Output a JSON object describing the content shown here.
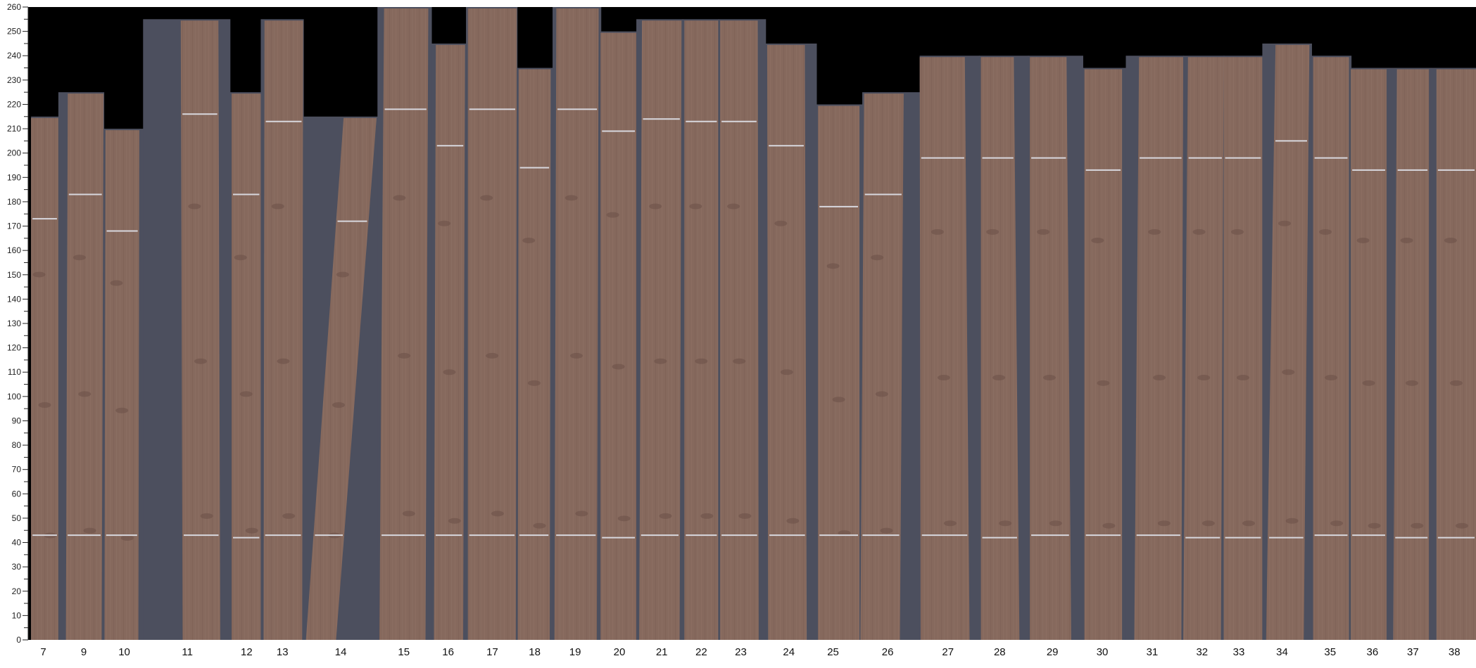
{
  "colors": {
    "background_empty": "#000000",
    "slate_background": "#4c4f5e",
    "wood": "#86695d",
    "marker_line": "#d8d8de",
    "axis": "#222222"
  },
  "chart_data": {
    "type": "bar",
    "title": "",
    "xlabel": "",
    "ylabel": "",
    "ylim": [
      0,
      260
    ],
    "y_major_step": 10,
    "y_minor_step": 5,
    "grid": false,
    "categories": [
      "7",
      "9",
      "10",
      "11",
      "12",
      "13",
      "14",
      "15",
      "16",
      "17",
      "18",
      "19",
      "20",
      "21",
      "22",
      "23",
      "24",
      "25",
      "26",
      "27",
      "28",
      "29",
      "30",
      "31",
      "32",
      "33",
      "34",
      "35",
      "36",
      "37",
      "38"
    ],
    "values": [
      215,
      225,
      210,
      255,
      225,
      255,
      215,
      260,
      245,
      260,
      235,
      260,
      250,
      255,
      255,
      255,
      245,
      220,
      225,
      240,
      240,
      240,
      235,
      240,
      240,
      240,
      245,
      240,
      235,
      235,
      235
    ],
    "upper_marker": [
      173,
      183,
      168,
      216,
      183,
      213,
      172,
      218,
      203,
      218,
      194,
      218,
      209,
      214,
      213,
      213,
      203,
      178,
      183,
      198,
      198,
      198,
      193,
      198,
      198,
      198,
      205,
      198,
      193,
      193,
      193
    ],
    "lower_marker": [
      43,
      43,
      43,
      43,
      42,
      43,
      43,
      43,
      43,
      43,
      43,
      43,
      42,
      43,
      43,
      43,
      43,
      43,
      43,
      43,
      42,
      43,
      43,
      43,
      42,
      42,
      42,
      43,
      43,
      42,
      42
    ]
  }
}
